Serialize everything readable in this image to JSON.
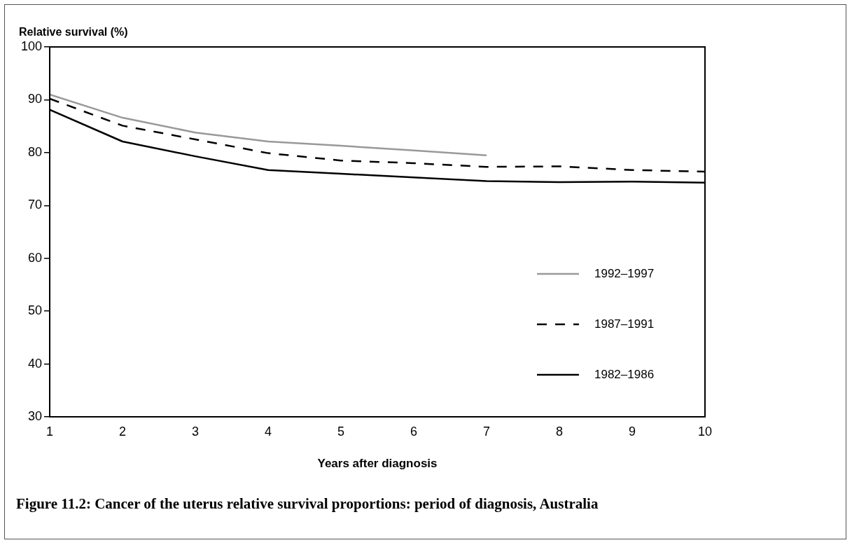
{
  "chart_data": {
    "type": "line",
    "title": "Figure 11.2: Cancer of the uterus relative survival proportions: period of diagnosis, Australia",
    "xlabel": "Years after diagnosis",
    "ylabel": "Relative survival (%)",
    "x": [
      1,
      2,
      3,
      4,
      5,
      6,
      7,
      8,
      9,
      10
    ],
    "xlim": [
      1,
      10
    ],
    "xticks": [
      1,
      2,
      3,
      4,
      5,
      6,
      7,
      8,
      9,
      10
    ],
    "ylim": [
      30,
      100
    ],
    "yticks": [
      30,
      40,
      50,
      60,
      70,
      80,
      90,
      100
    ],
    "grid": false,
    "legend": "bottom right",
    "marker": "none",
    "series": [
      {
        "name": "1992–1997",
        "color": "#999999",
        "line_style": "solid",
        "values": [
          91,
          86.6,
          83.8,
          82.1,
          81.3,
          80.4,
          79.5,
          null,
          null,
          null
        ]
      },
      {
        "name": "1987–1991",
        "color": "#000000",
        "line_style": "dashed",
        "values": [
          90.2,
          85.1,
          82.5,
          79.9,
          78.5,
          78,
          77.3,
          77.4,
          76.7,
          76.4
        ]
      },
      {
        "name": "1982–1986",
        "color": "#000000",
        "line_style": "solid",
        "values": [
          88.1,
          82.1,
          79.3,
          76.7,
          76,
          75.3,
          74.6,
          74.4,
          74.5,
          74.3
        ]
      }
    ]
  }
}
